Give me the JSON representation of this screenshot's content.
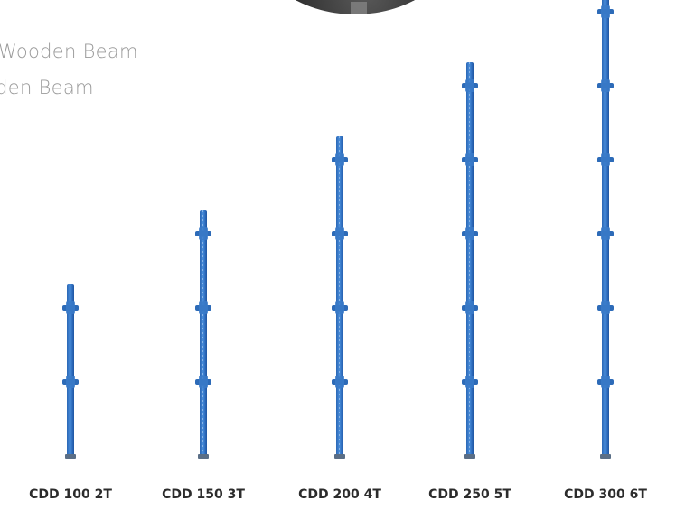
{
  "header": {
    "photo_icon": "circular-photo-crop",
    "lines": [
      "Wooden Beam",
      "oden Beam"
    ]
  },
  "props": [
    {
      "label": "CDD 100 2T",
      "segments": 2
    },
    {
      "label": "CDD 150 3T",
      "segments": 3
    },
    {
      "label": "CDD 200 4T",
      "segments": 4
    },
    {
      "label": "CDD 250 5T",
      "segments": 5
    },
    {
      "label": "CDD 300 6T",
      "segments": 6
    }
  ],
  "colors": {
    "prop_blue": "#2f73c6",
    "label_text": "#2c2c2c",
    "heading_text": "#9a9a9a"
  }
}
